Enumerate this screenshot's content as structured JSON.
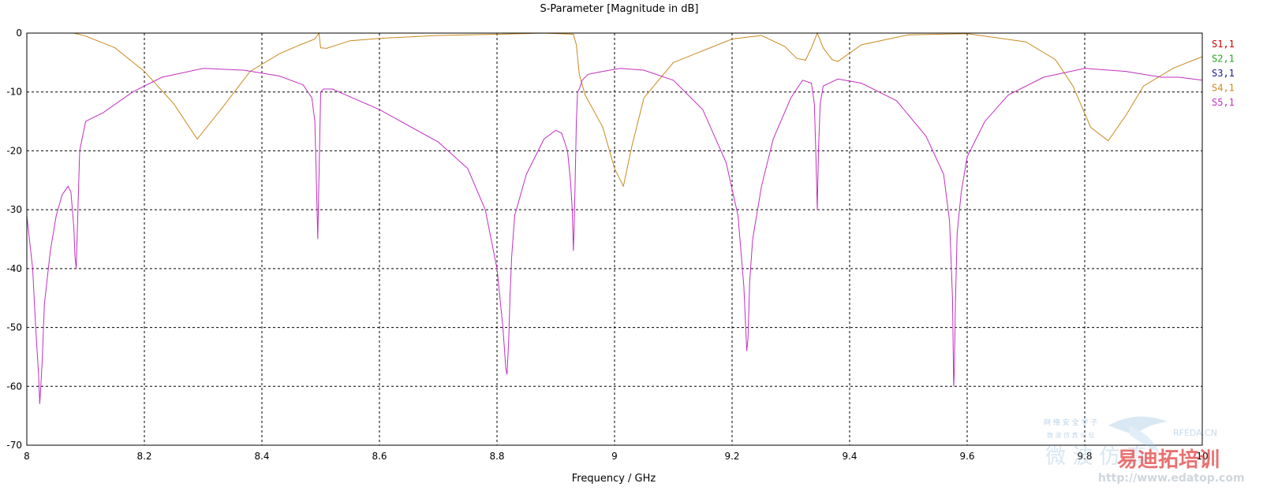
{
  "chart_data": {
    "type": "line",
    "title": "S-Parameter [Magnitude in dB]",
    "xlabel": "Frequency / GHz",
    "ylabel": "",
    "xlim": [
      8,
      10
    ],
    "ylim": [
      -70,
      0
    ],
    "x_ticks": [
      8,
      8.2,
      8.4,
      8.6,
      8.8,
      9,
      9.2,
      9.4,
      9.6,
      9.8,
      10
    ],
    "x_tick_labels": [
      "8",
      "8.2",
      "8.4",
      "8.6",
      "8.8",
      "9",
      "9.2",
      "9.4",
      "9.6",
      "9.8",
      "10"
    ],
    "y_ticks": [
      0,
      -10,
      -20,
      -30,
      -40,
      -50,
      -60,
      -70
    ],
    "y_tick_labels": [
      "0",
      "-10",
      "-20",
      "-30",
      "-40",
      "-50",
      "-60",
      "-70"
    ],
    "grid": true,
    "legend_position": "right",
    "series": [
      {
        "name": "S1,1",
        "color": "#cc0000",
        "x": [
          8,
          8.09,
          8.5,
          8.93,
          9.95,
          10
        ],
        "y": [
          0,
          0,
          0,
          0,
          0,
          0
        ]
      },
      {
        "name": "S2,1",
        "color": "#22aa22",
        "x": [],
        "y": []
      },
      {
        "name": "S3,1",
        "color": "#1a1a8c",
        "x": [],
        "y": []
      },
      {
        "name": "S4,1",
        "color": "#c88a1e",
        "x": [
          8,
          8.08,
          8.1,
          8.15,
          8.2,
          8.25,
          8.29,
          8.33,
          8.38,
          8.43,
          8.46,
          8.49,
          8.497,
          8.5,
          8.51,
          8.55,
          8.6,
          8.7,
          8.8,
          8.88,
          8.93,
          8.935,
          8.94,
          8.95,
          8.98,
          9.0,
          9.015,
          9.03,
          9.05,
          9.1,
          9.2,
          9.25,
          9.29,
          9.31,
          9.325,
          9.335,
          9.345,
          9.355,
          9.37,
          9.38,
          9.42,
          9.5,
          9.6,
          9.7,
          9.75,
          9.78,
          9.81,
          9.84,
          9.87,
          9.9,
          9.95,
          10
        ],
        "y": [
          0,
          0,
          -0.5,
          -2.5,
          -6.5,
          -12,
          -18,
          -13,
          -6.5,
          -3.5,
          -2.2,
          -1,
          0,
          -2.5,
          -2.6,
          -1.3,
          -0.9,
          -0.4,
          -0.2,
          0,
          -0.2,
          -2,
          -7,
          -10.5,
          -16,
          -23,
          -26,
          -19,
          -11,
          -5,
          -1,
          -0.4,
          -2.3,
          -4.3,
          -4.6,
          -2.5,
          0,
          -2.5,
          -4.5,
          -4.8,
          -2,
          -0.3,
          -0.1,
          -1.5,
          -4.5,
          -9,
          -16,
          -18.3,
          -14,
          -9,
          -6,
          -4
        ]
      },
      {
        "name": "S5,1",
        "color": "#c12fc1",
        "x": [
          8,
          8.01,
          8.015,
          8.02,
          8.022,
          8.026,
          8.03,
          8.04,
          8.05,
          8.06,
          8.07,
          8.075,
          8.08,
          8.082,
          8.084,
          8.086,
          8.09,
          8.1,
          8.13,
          8.18,
          8.23,
          8.3,
          8.37,
          8.43,
          8.47,
          8.485,
          8.49,
          8.492,
          8.495,
          8.498,
          8.5,
          8.505,
          8.52,
          8.6,
          8.7,
          8.75,
          8.78,
          8.8,
          8.81,
          8.815,
          8.817,
          8.82,
          8.822,
          8.825,
          8.83,
          8.85,
          8.88,
          8.9,
          8.91,
          8.92,
          8.925,
          8.928,
          8.93,
          8.931,
          8.933,
          8.935,
          8.937,
          8.94,
          8.945,
          8.955,
          8.98,
          9.01,
          9.05,
          9.1,
          9.15,
          9.19,
          9.21,
          9.22,
          9.225,
          9.227,
          9.23,
          9.235,
          9.25,
          9.27,
          9.3,
          9.32,
          9.335,
          9.34,
          9.343,
          9.345,
          9.347,
          9.35,
          9.355,
          9.38,
          9.42,
          9.48,
          9.53,
          9.56,
          9.57,
          9.575,
          9.577,
          9.578,
          9.58,
          9.583,
          9.59,
          9.6,
          9.63,
          9.67,
          9.73,
          9.8,
          9.87,
          9.93,
          9.96,
          10
        ],
        "y": [
          -31,
          -40,
          -50,
          -58,
          -63,
          -56,
          -46,
          -37,
          -31,
          -27.5,
          -26,
          -27,
          -33,
          -38,
          -40,
          -33,
          -20,
          -15,
          -13.5,
          -10,
          -7.5,
          -6,
          -6.3,
          -7.3,
          -8.8,
          -11,
          -15,
          -22,
          -35,
          -20,
          -10,
          -9.5,
          -9.5,
          -13,
          -18.5,
          -23,
          -30,
          -40,
          -50,
          -57,
          -58,
          -52,
          -45,
          -38,
          -31,
          -24,
          -18,
          -16.5,
          -17,
          -20,
          -25,
          -30,
          -37,
          -34,
          -25,
          -15,
          -10,
          -9.5,
          -8,
          -7,
          -6.5,
          -6,
          -6.3,
          -8,
          -13,
          -22,
          -31,
          -43,
          -54,
          -52,
          -42,
          -35,
          -26,
          -18,
          -11,
          -8,
          -8.5,
          -12,
          -22,
          -30,
          -20,
          -12,
          -9,
          -7.8,
          -8.5,
          -11.5,
          -17.5,
          -24,
          -32,
          -45,
          -60,
          -58,
          -46,
          -34,
          -27,
          -21,
          -15,
          -10.5,
          -7.5,
          -6,
          -6.5,
          -7.5,
          -7.5,
          -8
        ]
      }
    ]
  },
  "watermark": {
    "brand": "易迪拓培训",
    "url": "http://www.edatop.com",
    "tag": "RFEDA.CN",
    "chinese_small": "网 络 安 全 学 子",
    "chinese_sub": "微 波 仿 真 论 坛",
    "big_chars": "微 波 仿 真"
  }
}
